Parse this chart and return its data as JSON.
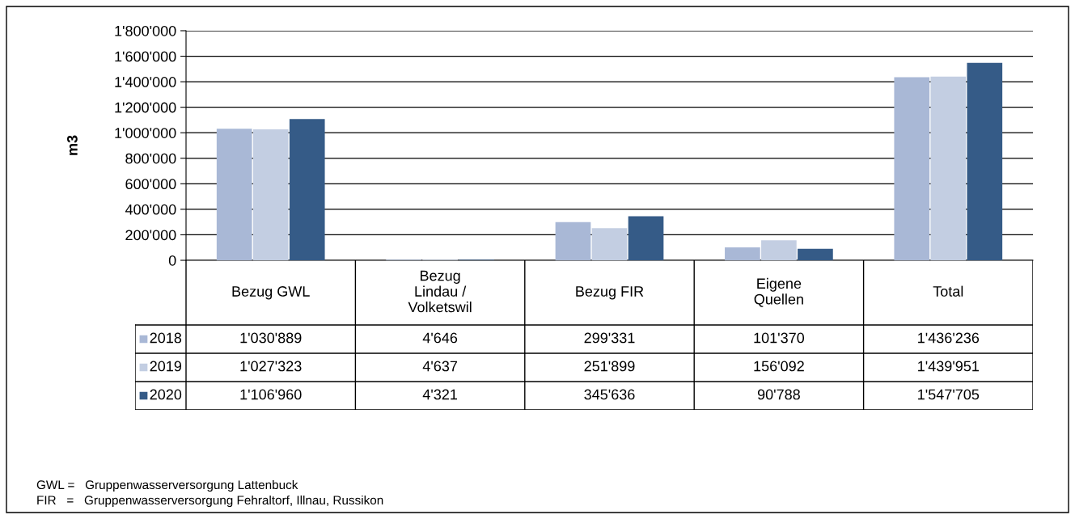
{
  "chart_data": {
    "type": "bar",
    "ylabel": "m3",
    "categories": [
      "Bezug GWL",
      "Bezug\nLindau /\nVolketswil",
      "Bezug FIR",
      "Eigene\nQuellen",
      "Total"
    ],
    "series": [
      {
        "name": "2018",
        "color": "#a9b8d6",
        "values": [
          1030889,
          4646,
          299331,
          101370,
          1436236
        ],
        "value_labels": [
          "1'030'889",
          "4'646",
          "299'331",
          "101'370",
          "1'436'236"
        ]
      },
      {
        "name": "2019",
        "color": "#c3cee2",
        "values": [
          1027323,
          4637,
          251899,
          156092,
          1439951
        ],
        "value_labels": [
          "1'027'323",
          "4'637",
          "251'899",
          "156'092",
          "1'439'951"
        ]
      },
      {
        "name": "2020",
        "color": "#355b87",
        "values": [
          1106960,
          4321,
          345636,
          90788,
          1547705
        ],
        "value_labels": [
          "1'106'960",
          "4'321",
          "345'636",
          "90'788",
          "1'547'705"
        ]
      }
    ],
    "ylim": [
      0,
      1800000
    ],
    "yticks": [
      0,
      {
        "value": 200000,
        "label": "200'000"
      },
      {
        "value": 400000,
        "label": "400'000"
      },
      {
        "value": 600000,
        "label": "600'000"
      },
      {
        "value": 800000,
        "label": "800'000"
      },
      {
        "value": 1000000,
        "label": "1'000'000"
      },
      {
        "value": 1200000,
        "label": "1'200'000"
      },
      {
        "value": 1400000,
        "label": "1'400'000"
      },
      {
        "value": 1600000,
        "label": "1'600'000"
      },
      {
        "value": 1800000,
        "label": "1'800'000"
      }
    ],
    "grid": "y",
    "legend": "bottom left",
    "annotations": [
      "GWL =   Gruppenwasserversorgung Lattenbuck",
      "FIR   =   Gruppenwasserversorgung Fehraltorf, Illnau, Russikon"
    ]
  }
}
